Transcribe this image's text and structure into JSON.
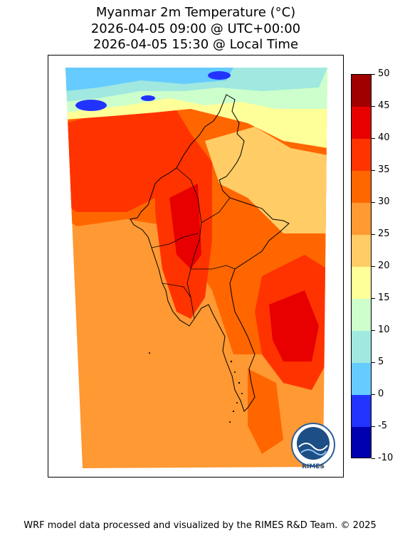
{
  "title": {
    "line1": "Myanmar 2m Temperature (°C)",
    "line2": "2026-04-05 09:00 @ UTC+00:00",
    "line3": "2026-04-05 15:30 @ Local Time"
  },
  "colorbar": {
    "ticks": [
      "50",
      "45",
      "40",
      "35",
      "30",
      "25",
      "20",
      "15",
      "10",
      "5",
      "0",
      "-5",
      "-10"
    ],
    "bins": [
      {
        "range": "45-50",
        "color": "#a00000"
      },
      {
        "range": "40-45",
        "color": "#e80000"
      },
      {
        "range": "35-40",
        "color": "#ff3300"
      },
      {
        "range": "30-35",
        "color": "#ff6600"
      },
      {
        "range": "25-30",
        "color": "#ff9933"
      },
      {
        "range": "20-25",
        "color": "#ffcc66"
      },
      {
        "range": "15-20",
        "color": "#ffff99"
      },
      {
        "range": "10-15",
        "color": "#ccffcc"
      },
      {
        "range": "5-10",
        "color": "#a0e8e0"
      },
      {
        "range": "0-5",
        "color": "#66ccff"
      },
      {
        "range": "-5-0",
        "color": "#2233ff"
      },
      {
        "range": "-10--5",
        "color": "#0000b0"
      }
    ]
  },
  "logo": {
    "text": "RIMES"
  },
  "footer": "WRF model data processed and visualized by the RIMES R&D Team. © 2025"
}
